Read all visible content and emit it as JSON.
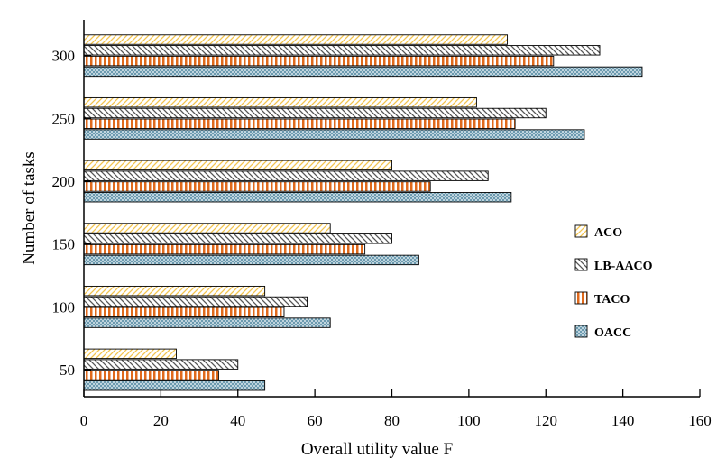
{
  "chart_data": {
    "type": "bar",
    "orientation": "horizontal",
    "title": "",
    "xlabel": "Overall utility value F",
    "ylabel": "Number of tasks",
    "xlim": [
      0,
      160
    ],
    "x_ticks": [
      "0",
      "20",
      "40",
      "60",
      "80",
      "100",
      "120",
      "140",
      "160"
    ],
    "categories": [
      "50",
      "100",
      "150",
      "200",
      "250",
      "300"
    ],
    "series": [
      {
        "name": "ACO",
        "values": [
          24,
          47,
          64,
          80,
          102,
          110
        ],
        "color": "#f2c44f",
        "pattern": "diagonal-up"
      },
      {
        "name": "LB-AACO",
        "values": [
          40,
          58,
          80,
          105,
          120,
          134
        ],
        "color": "#555555",
        "pattern": "diagonal-down"
      },
      {
        "name": "TACO",
        "values": [
          35,
          52,
          73,
          90,
          112,
          122
        ],
        "color": "#e06a1c",
        "pattern": "vertical"
      },
      {
        "name": "OACC",
        "values": [
          47,
          64,
          87,
          111,
          130,
          145
        ],
        "color": "#5b8fa6",
        "pattern": "crosshatch"
      }
    ],
    "grid": false,
    "legend_position": "right"
  }
}
